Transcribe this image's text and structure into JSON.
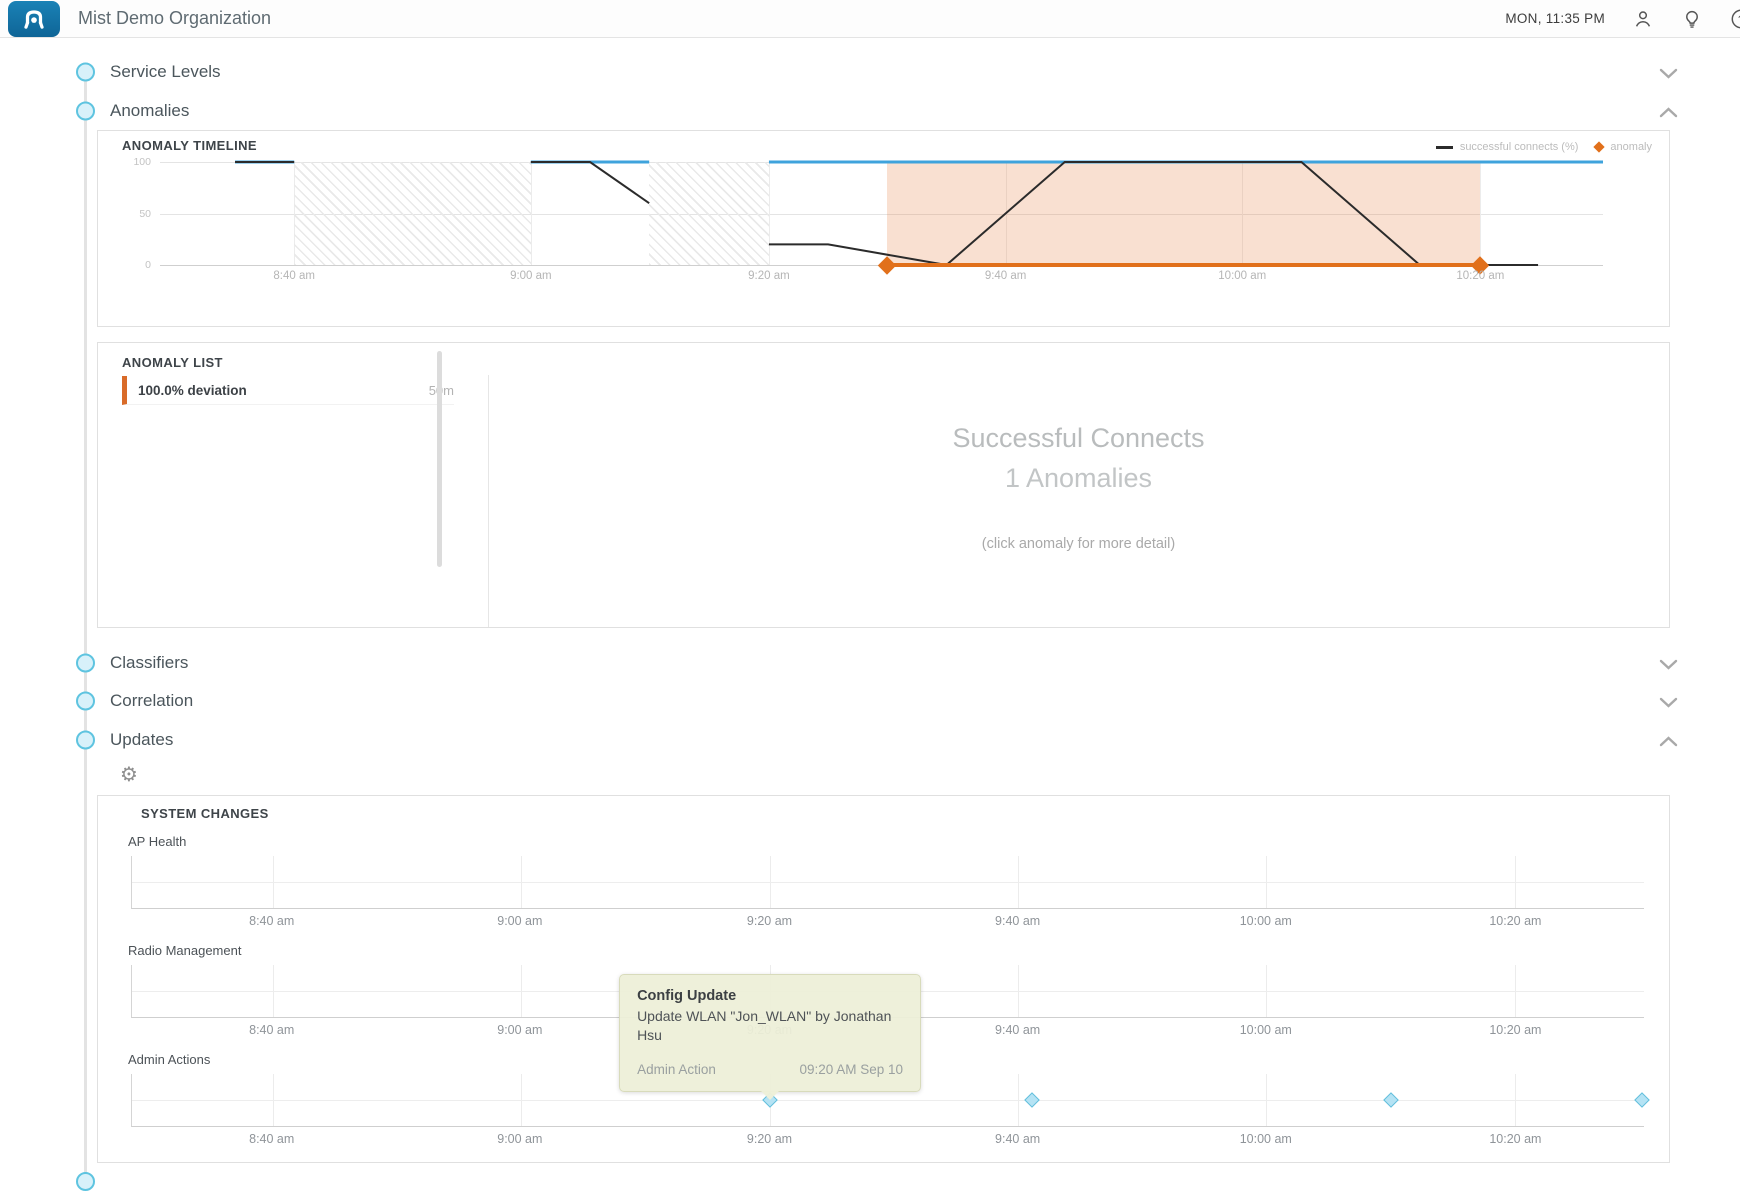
{
  "header": {
    "title": "Mist Demo Organization",
    "clock": "MON, 11:35 PM"
  },
  "icons": {
    "logo": "mist-ap-logo",
    "header_right": [
      "account-icon",
      "idea-bulb-icon",
      "help-icon"
    ],
    "updates_toolbar": "gear-icon",
    "section_toggle": "chevron-icon"
  },
  "rail_sections": [
    {
      "id": "service-levels",
      "label": "Service Levels",
      "state": "collapsed"
    },
    {
      "id": "anomalies",
      "label": "Anomalies",
      "state": "expanded"
    },
    {
      "id": "classifiers",
      "label": "Classifiers",
      "state": "collapsed"
    },
    {
      "id": "correlation",
      "label": "Correlation",
      "state": "collapsed"
    },
    {
      "id": "updates",
      "label": "Updates",
      "state": "expanded"
    }
  ],
  "anomaly_timeline_card": {
    "title": "ANOMALY TIMELINE",
    "legend": {
      "line_label": "successful connects (%)",
      "diamond_label": "anomaly"
    }
  },
  "anomaly_list_card": {
    "title": "ANOMALY LIST",
    "items": [
      {
        "deviation": "100.0% deviation",
        "duration": "50m"
      }
    ],
    "detail": {
      "metric": "Successful Connects",
      "count": "1 Anomalies",
      "hint": "(click anomaly for more detail)"
    }
  },
  "system_changes_card": {
    "title": "SYSTEM CHANGES"
  },
  "tooltip": {
    "title": "Config Update",
    "body": "Update WLAN \"Jon_WLAN\" by Jonathan Hsu",
    "category": "Admin Action",
    "timestamp": "09:20 AM Sep 10"
  },
  "colors": {
    "logo_blue": "#1173a5",
    "baseline_blue": "#3fa3dc",
    "connects_black": "#2b2b2b",
    "anomaly_orange": "#e1701b",
    "anomaly_shade": "rgba(226,116,45,0.22)",
    "rail_circle_border": "#5ec4e0",
    "event_marker_fill": "#b5e3f4",
    "event_marker_border": "#62bfdc",
    "tooltip_bg": "#edefd8"
  },
  "chart_data": {
    "anomaly_timeline": {
      "type": "line",
      "title": "ANOMALY TIMELINE",
      "x_range": [
        "8:29 am",
        "10:30 am"
      ],
      "y_ticks": [
        100,
        50,
        0
      ],
      "ylim": [
        0,
        100
      ],
      "x_ticks": [
        {
          "label": "8:40 am",
          "pct": 9.3
        },
        {
          "label": "9:00 am",
          "pct": 25.7
        },
        {
          "label": "9:20 am",
          "pct": 42.2
        },
        {
          "label": "9:40 am",
          "pct": 58.6
        },
        {
          "label": "10:00 am",
          "pct": 75.0
        },
        {
          "label": "10:20 am",
          "pct": 91.5
        }
      ],
      "no_data_regions": [
        {
          "from": "8:40 am",
          "from_pct": 9.3,
          "to": "9:00 am",
          "to_pct": 25.7
        },
        {
          "from": "9:10 am",
          "from_pct": 33.9,
          "to": "9:20 am",
          "to_pct": 42.2
        }
      ],
      "series": [
        {
          "name": "baseline",
          "color": "#3fa3dc",
          "width": 3,
          "segments": [
            [
              {
                "t": "8:35 am",
                "pct": 5.2,
                "v": 100
              },
              {
                "t": "8:40 am",
                "pct": 9.3,
                "v": 100
              }
            ],
            [
              {
                "t": "9:00 am",
                "pct": 25.7,
                "v": 100
              },
              {
                "t": "9:10 am",
                "pct": 33.9,
                "v": 100
              }
            ],
            [
              {
                "t": "9:20 am",
                "pct": 42.2,
                "v": 100
              },
              {
                "t": "10:30 am",
                "pct": 100,
                "v": 100
              }
            ]
          ]
        },
        {
          "name": "successful connects (%)",
          "color": "#2b2b2b",
          "width": 2,
          "segments": [
            [
              {
                "t": "8:35 am",
                "pct": 5.2,
                "v": 100
              },
              {
                "t": "8:40 am",
                "pct": 9.3,
                "v": 100
              }
            ],
            [
              {
                "t": "9:00 am",
                "pct": 25.7,
                "v": 100
              },
              {
                "t": "9:05 am",
                "pct": 29.8,
                "v": 100
              },
              {
                "t": "9:10 am",
                "pct": 33.9,
                "v": 60
              }
            ],
            [
              {
                "t": "9:20 am",
                "pct": 42.2,
                "v": 20
              },
              {
                "t": "9:25 am",
                "pct": 46.3,
                "v": 20
              },
              {
                "t": "9:35 am",
                "pct": 54.5,
                "v": 0
              },
              {
                "t": "9:45 am",
                "pct": 62.7,
                "v": 100
              },
              {
                "t": "10:05 am",
                "pct": 79.1,
                "v": 100
              },
              {
                "t": "10:15 am",
                "pct": 87.3,
                "v": 0
              },
              {
                "t": "10:25 am",
                "pct": 95.5,
                "v": 0
              }
            ]
          ]
        }
      ],
      "anomaly": {
        "metric": "Successful Connects",
        "from": "9:30 am",
        "from_pct": 50.4,
        "to": "10:20 am",
        "to_pct": 91.5,
        "v": 0,
        "duration": "50m",
        "color": "#e1701b",
        "fill": "rgba(226,116,45,0.22)"
      }
    },
    "system_changes": {
      "type": "event-timeline",
      "x_ticks": [
        {
          "label": "8:40 am",
          "pct": 9.3
        },
        {
          "label": "9:00 am",
          "pct": 25.7
        },
        {
          "label": "9:20 am",
          "pct": 42.2
        },
        {
          "label": "9:40 am",
          "pct": 58.6
        },
        {
          "label": "10:00 am",
          "pct": 75.0
        },
        {
          "label": "10:20 am",
          "pct": 91.5
        }
      ],
      "rows": [
        {
          "label": "AP Health",
          "markers": []
        },
        {
          "label": "Radio Management",
          "markers": []
        },
        {
          "label": "Admin Actions",
          "markers": [
            {
              "time": "9:20 am",
              "pct": 42.2,
              "selected": true
            },
            {
              "time": "9:41 am",
              "pct": 59.5
            },
            {
              "time": "10:10 am",
              "pct": 83.3
            },
            {
              "time": "10:31 am",
              "pct": 99.9
            }
          ]
        }
      ]
    }
  }
}
